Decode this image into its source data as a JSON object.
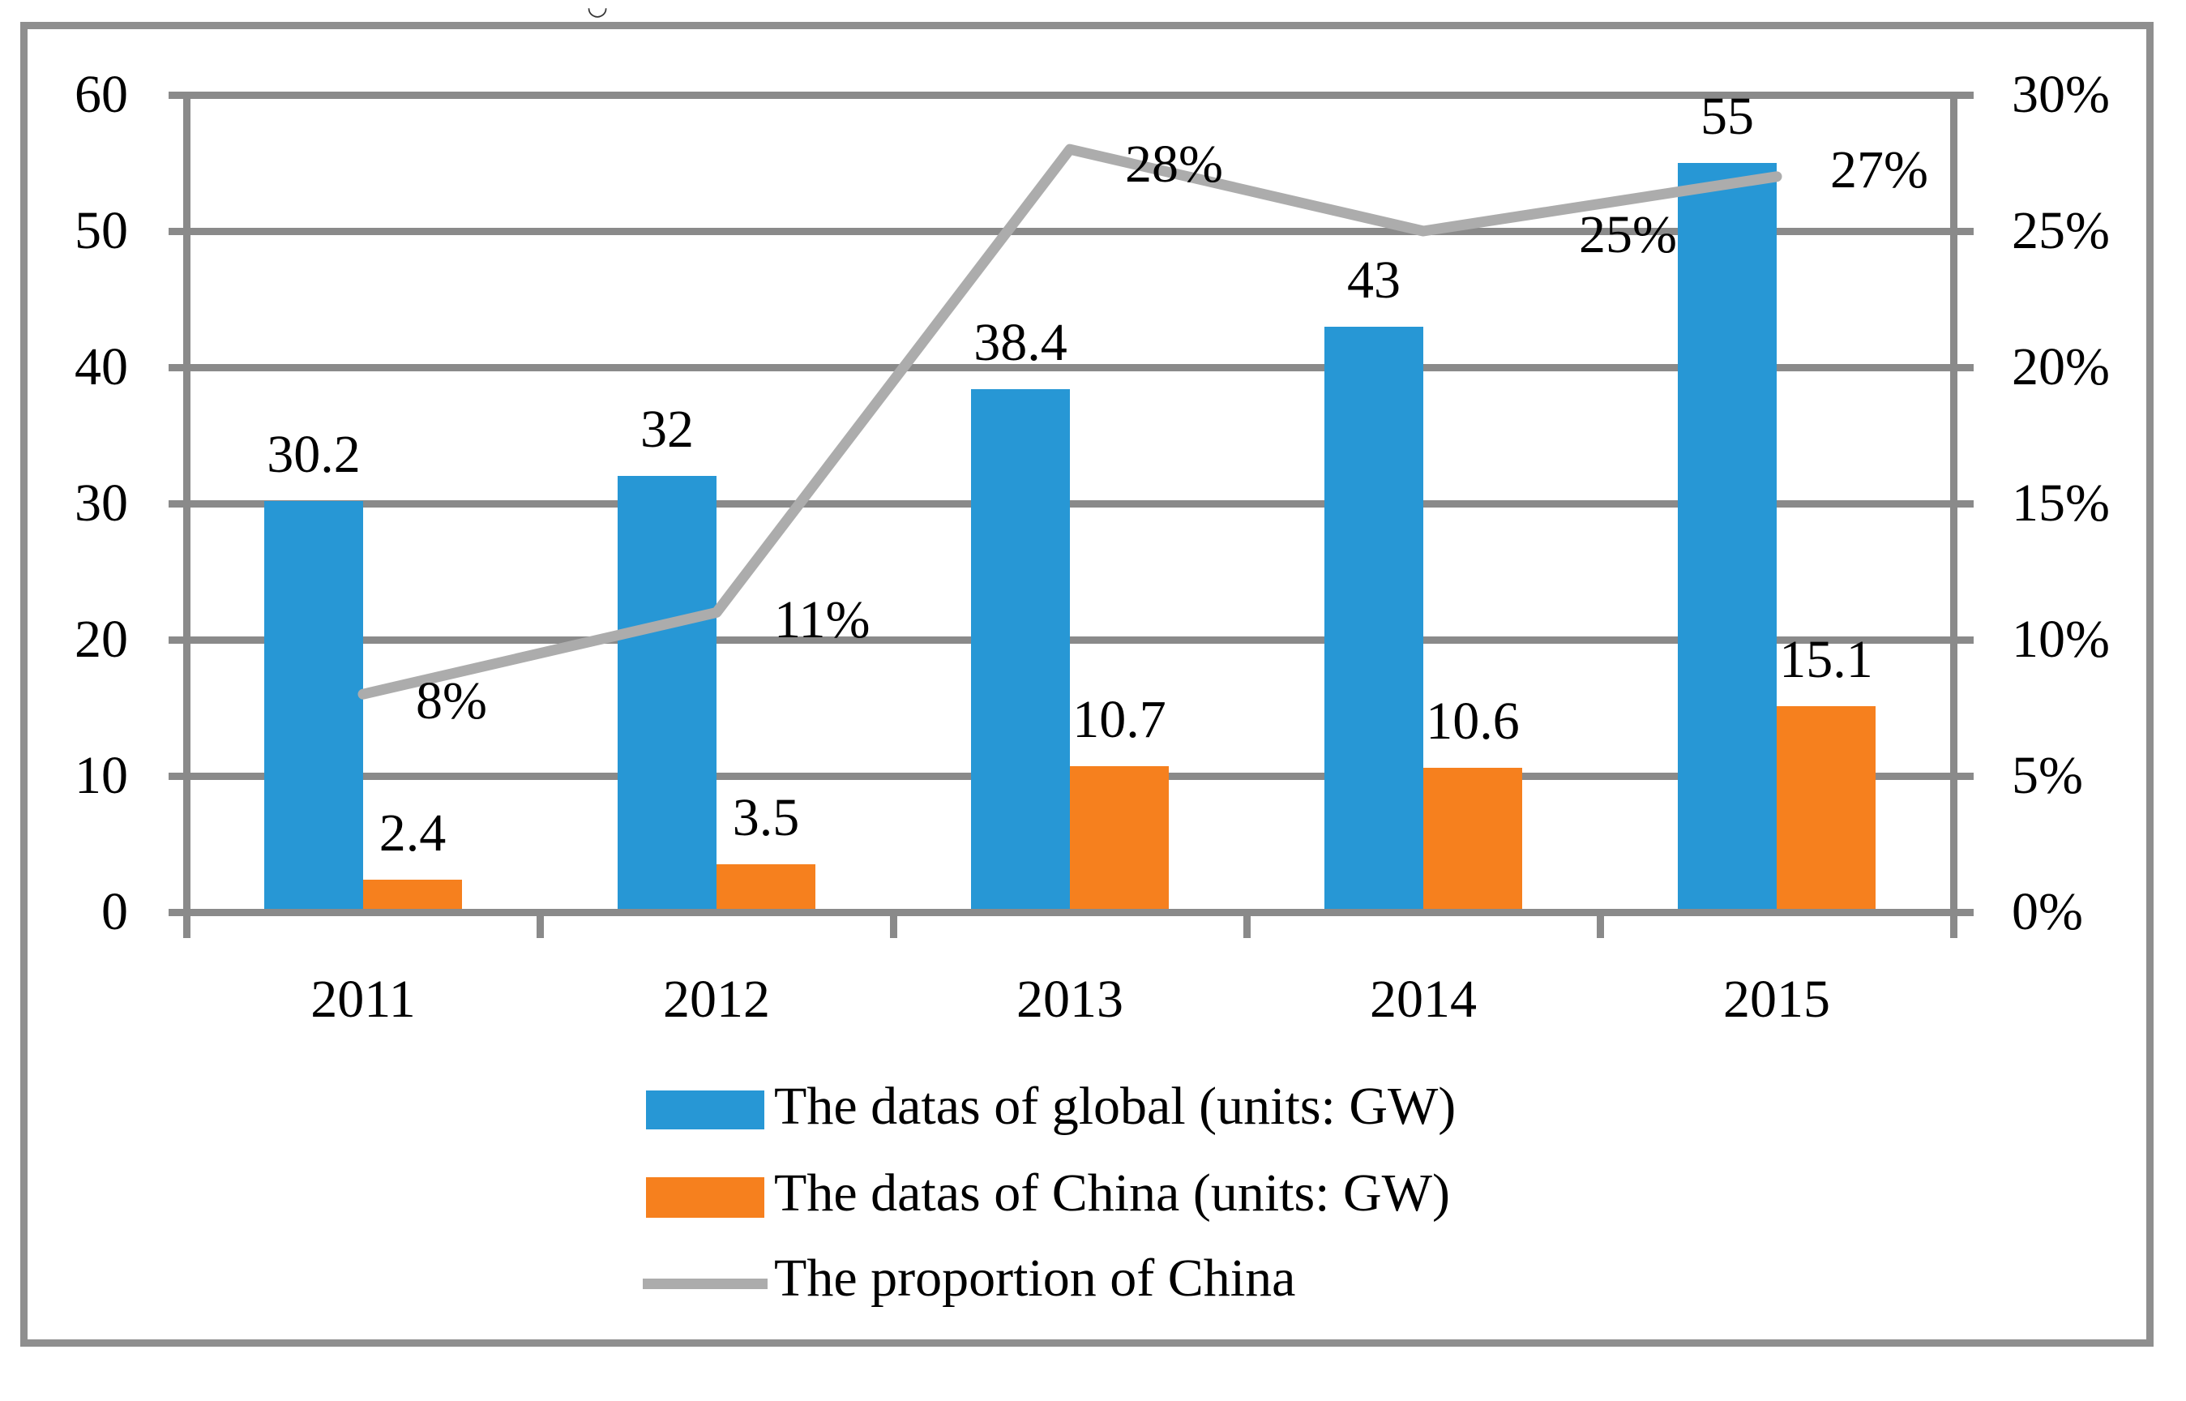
{
  "chart_data": {
    "type": "bar+line",
    "title": "",
    "categories": [
      "2011",
      "2012",
      "2013",
      "2014",
      "2015"
    ],
    "series": [
      {
        "name": "The datas of global (units: GW)",
        "type": "bar",
        "axis": "left",
        "color": "#2797d5",
        "values": [
          30.2,
          32,
          38.4,
          43,
          55
        ],
        "data_labels": [
          "30.2",
          "32",
          "38.4",
          "43",
          "55"
        ]
      },
      {
        "name": "The datas of China (units: GW)",
        "type": "bar",
        "axis": "left",
        "color": "#f6801e",
        "values": [
          2.4,
          3.5,
          10.7,
          10.6,
          15.1
        ],
        "data_labels": [
          "2.4",
          "3.5",
          "10.7",
          "10.6",
          "15.1"
        ]
      },
      {
        "name": "The proportion of China",
        "type": "line",
        "axis": "right",
        "color": "#acacac",
        "values": [
          8,
          11,
          28,
          25,
          27
        ],
        "data_labels": [
          "8%",
          "11%",
          "28%",
          "25%",
          "27%"
        ]
      }
    ],
    "left_axis": {
      "min": 0,
      "max": 60,
      "step": 10,
      "tick_labels": [
        "0",
        "10",
        "20",
        "30",
        "40",
        "50",
        "60"
      ]
    },
    "right_axis": {
      "min": 0,
      "max": 30,
      "step": 5,
      "tick_labels": [
        "0%",
        "5%",
        "10%",
        "15%",
        "20%",
        "25%",
        "30%"
      ]
    },
    "grid": true,
    "legend_position": "bottom",
    "grid_color": "#8a8a8a",
    "background_color": "#ffffff"
  },
  "artifact_glyph": "◡"
}
